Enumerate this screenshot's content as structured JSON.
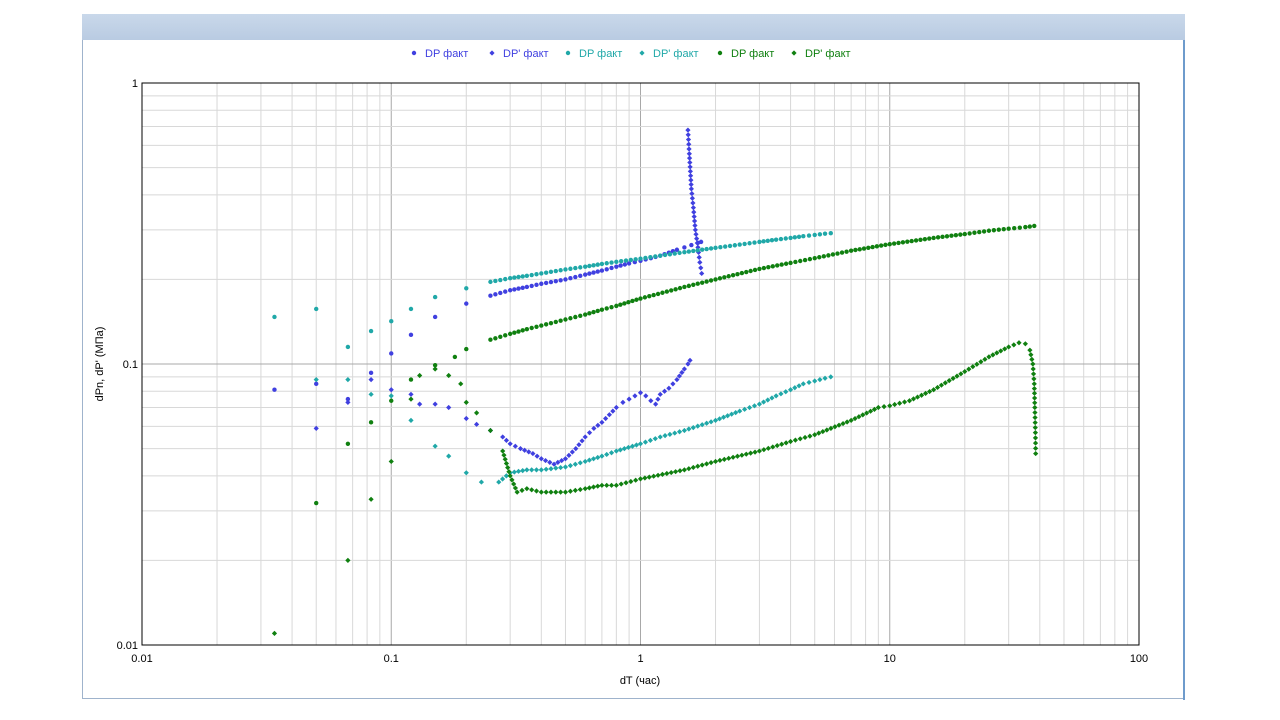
{
  "colors": {
    "blue": "#4040e0",
    "teal": "#20a8a8",
    "green": "#108010",
    "grid": "#d8d8d8",
    "grid_major": "#a8a8a8"
  },
  "chart_data": {
    "type": "scatter",
    "title": "",
    "xlabel": "dT (час)",
    "ylabel": "dPn, dP' (МПа)",
    "x_scale": "log",
    "y_scale": "log",
    "xlim": [
      0.01,
      100
    ],
    "ylim": [
      0.01,
      1
    ],
    "x_ticks": [
      "0.01",
      "0.1",
      "1",
      "10",
      "100"
    ],
    "y_ticks": [
      "0.01",
      "0.1",
      "1"
    ],
    "grid": true,
    "legend_position": "top",
    "series": [
      {
        "name": "DP факт",
        "color": "blue",
        "marker": "circle",
        "points": [
          [
            0.034,
            0.081
          ],
          [
            0.05,
            0.085
          ],
          [
            0.067,
            0.075
          ],
          [
            0.083,
            0.093
          ],
          [
            0.1,
            0.109
          ],
          [
            0.12,
            0.127
          ],
          [
            0.15,
            0.147
          ],
          [
            0.2,
            0.164
          ],
          [
            0.25,
            0.175
          ],
          [
            0.3,
            0.183
          ],
          [
            0.35,
            0.188
          ],
          [
            0.4,
            0.193
          ],
          [
            0.5,
            0.2
          ],
          [
            0.6,
            0.208
          ],
          [
            0.7,
            0.215
          ],
          [
            0.8,
            0.222
          ],
          [
            0.9,
            0.228
          ],
          [
            1.0,
            0.233
          ],
          [
            1.1,
            0.238
          ],
          [
            1.2,
            0.243
          ],
          [
            1.3,
            0.249
          ],
          [
            1.4,
            0.255
          ],
          [
            1.5,
            0.26
          ],
          [
            1.6,
            0.265
          ],
          [
            1.7,
            0.27
          ],
          [
            1.75,
            0.272
          ]
        ]
      },
      {
        "name": "DP' факт",
        "color": "blue",
        "marker": "diamond",
        "points": [
          [
            0.05,
            0.059
          ],
          [
            0.067,
            0.073
          ],
          [
            0.083,
            0.088
          ],
          [
            0.1,
            0.081
          ],
          [
            0.12,
            0.078
          ],
          [
            0.13,
            0.072
          ],
          [
            0.15,
            0.072
          ],
          [
            0.17,
            0.07
          ],
          [
            0.2,
            0.064
          ],
          [
            0.22,
            0.061
          ],
          [
            0.25,
            0.058
          ],
          [
            0.28,
            0.055
          ],
          [
            0.3,
            0.052
          ],
          [
            0.33,
            0.05
          ],
          [
            0.37,
            0.048
          ],
          [
            0.4,
            0.046
          ],
          [
            0.45,
            0.044
          ],
          [
            0.5,
            0.046
          ],
          [
            0.55,
            0.05
          ],
          [
            0.6,
            0.055
          ],
          [
            0.65,
            0.059
          ],
          [
            0.7,
            0.062
          ],
          [
            0.75,
            0.066
          ],
          [
            0.8,
            0.07
          ],
          [
            0.85,
            0.073
          ],
          [
            0.9,
            0.075
          ],
          [
            0.95,
            0.077
          ],
          [
            1.0,
            0.079
          ],
          [
            1.05,
            0.077
          ],
          [
            1.1,
            0.074
          ],
          [
            1.15,
            0.072
          ],
          [
            1.2,
            0.078
          ],
          [
            1.3,
            0.082
          ],
          [
            1.4,
            0.088
          ],
          [
            1.5,
            0.096
          ],
          [
            1.55,
            0.1
          ],
          [
            1.58,
            0.103
          ],
          [
            1.55,
            0.68
          ],
          [
            1.57,
            0.56
          ],
          [
            1.6,
            0.42
          ],
          [
            1.63,
            0.36
          ],
          [
            1.66,
            0.3
          ],
          [
            1.7,
            0.26
          ],
          [
            1.73,
            0.23
          ],
          [
            1.76,
            0.21
          ]
        ]
      },
      {
        "name": "DP факт",
        "color": "teal",
        "marker": "circle",
        "points": [
          [
            0.034,
            0.147
          ],
          [
            0.05,
            0.157
          ],
          [
            0.067,
            0.115
          ],
          [
            0.083,
            0.131
          ],
          [
            0.1,
            0.142
          ],
          [
            0.12,
            0.157
          ],
          [
            0.15,
            0.173
          ],
          [
            0.2,
            0.186
          ],
          [
            0.25,
            0.196
          ],
          [
            0.3,
            0.202
          ],
          [
            0.35,
            0.206
          ],
          [
            0.4,
            0.21
          ],
          [
            0.5,
            0.217
          ],
          [
            0.6,
            0.222
          ],
          [
            0.7,
            0.227
          ],
          [
            0.8,
            0.231
          ],
          [
            1.0,
            0.237
          ],
          [
            1.2,
            0.243
          ],
          [
            1.5,
            0.25
          ],
          [
            2.0,
            0.259
          ],
          [
            2.5,
            0.266
          ],
          [
            3.0,
            0.272
          ],
          [
            3.5,
            0.277
          ],
          [
            4.0,
            0.281
          ],
          [
            4.5,
            0.285
          ],
          [
            5.0,
            0.288
          ],
          [
            5.5,
            0.291
          ],
          [
            5.8,
            0.292
          ]
        ]
      },
      {
        "name": "DP' факт",
        "color": "teal",
        "marker": "diamond",
        "points": [
          [
            0.05,
            0.088
          ],
          [
            0.067,
            0.088
          ],
          [
            0.083,
            0.078
          ],
          [
            0.1,
            0.077
          ],
          [
            0.12,
            0.063
          ],
          [
            0.15,
            0.051
          ],
          [
            0.17,
            0.047
          ],
          [
            0.2,
            0.041
          ],
          [
            0.23,
            0.038
          ],
          [
            0.27,
            0.038
          ],
          [
            0.3,
            0.041
          ],
          [
            0.35,
            0.042
          ],
          [
            0.4,
            0.042
          ],
          [
            0.5,
            0.043
          ],
          [
            0.6,
            0.045
          ],
          [
            0.7,
            0.047
          ],
          [
            0.8,
            0.049
          ],
          [
            1.0,
            0.052
          ],
          [
            1.2,
            0.055
          ],
          [
            1.5,
            0.058
          ],
          [
            2.0,
            0.063
          ],
          [
            2.5,
            0.068
          ],
          [
            3.0,
            0.072
          ],
          [
            3.5,
            0.077
          ],
          [
            4.0,
            0.081
          ],
          [
            4.5,
            0.085
          ],
          [
            5.0,
            0.087
          ],
          [
            5.5,
            0.089
          ],
          [
            5.8,
            0.09
          ]
        ]
      },
      {
        "name": "DP факт",
        "color": "green",
        "marker": "circle",
        "points": [
          [
            0.05,
            0.032
          ],
          [
            0.067,
            0.052
          ],
          [
            0.083,
            0.062
          ],
          [
            0.1,
            0.074
          ],
          [
            0.12,
            0.088
          ],
          [
            0.15,
            0.099
          ],
          [
            0.18,
            0.106
          ],
          [
            0.2,
            0.113
          ],
          [
            0.25,
            0.122
          ],
          [
            0.3,
            0.128
          ],
          [
            0.35,
            0.133
          ],
          [
            0.4,
            0.137
          ],
          [
            0.5,
            0.144
          ],
          [
            0.6,
            0.15
          ],
          [
            0.7,
            0.156
          ],
          [
            0.8,
            0.161
          ],
          [
            1.0,
            0.171
          ],
          [
            1.5,
            0.188
          ],
          [
            2.0,
            0.2
          ],
          [
            3.0,
            0.218
          ],
          [
            4.0,
            0.229
          ],
          [
            5.0,
            0.238
          ],
          [
            7.0,
            0.253
          ],
          [
            10.0,
            0.267
          ],
          [
            15.0,
            0.281
          ],
          [
            20.0,
            0.29
          ],
          [
            25.0,
            0.298
          ],
          [
            30.0,
            0.303
          ],
          [
            35.0,
            0.307
          ],
          [
            38.0,
            0.31
          ]
        ]
      },
      {
        "name": "DP' факт",
        "color": "green",
        "marker": "diamond",
        "points": [
          [
            0.034,
            0.011
          ],
          [
            0.067,
            0.02
          ],
          [
            0.083,
            0.033
          ],
          [
            0.1,
            0.045
          ],
          [
            0.12,
            0.075
          ],
          [
            0.13,
            0.091
          ],
          [
            0.15,
            0.096
          ],
          [
            0.17,
            0.091
          ],
          [
            0.19,
            0.085
          ],
          [
            0.2,
            0.073
          ],
          [
            0.22,
            0.067
          ],
          [
            0.25,
            0.058
          ],
          [
            0.28,
            0.049
          ],
          [
            0.3,
            0.04
          ],
          [
            0.32,
            0.035
          ],
          [
            0.35,
            0.036
          ],
          [
            0.4,
            0.035
          ],
          [
            0.5,
            0.035
          ],
          [
            0.6,
            0.036
          ],
          [
            0.7,
            0.037
          ],
          [
            0.8,
            0.037
          ],
          [
            1.0,
            0.039
          ],
          [
            1.5,
            0.042
          ],
          [
            2.0,
            0.045
          ],
          [
            3.0,
            0.049
          ],
          [
            4.0,
            0.053
          ],
          [
            5.0,
            0.056
          ],
          [
            7.0,
            0.063
          ],
          [
            9.0,
            0.07
          ],
          [
            10.0,
            0.071
          ],
          [
            12.0,
            0.074
          ],
          [
            15.0,
            0.081
          ],
          [
            20.0,
            0.094
          ],
          [
            25.0,
            0.106
          ],
          [
            30.0,
            0.115
          ],
          [
            33.0,
            0.119
          ],
          [
            35.0,
            0.118
          ],
          [
            36.5,
            0.112
          ],
          [
            37.5,
            0.1
          ],
          [
            38.0,
            0.085
          ],
          [
            38.2,
            0.07
          ],
          [
            38.4,
            0.057
          ],
          [
            38.5,
            0.048
          ]
        ]
      }
    ]
  }
}
